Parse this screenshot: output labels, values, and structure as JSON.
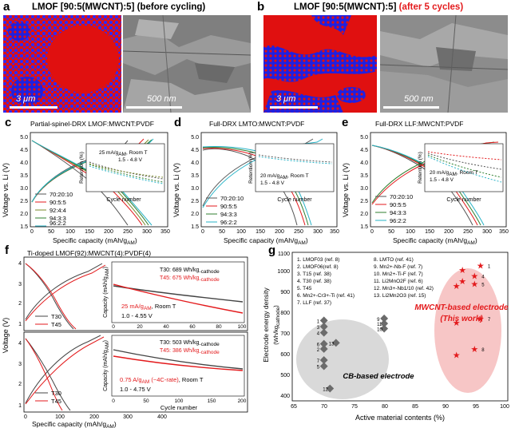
{
  "panels": {
    "a": {
      "letter": "a",
      "title": "LMOF [90:5(MWCNT):5]",
      "title_suffix": "(before cycling)",
      "scale_left": "3 μm",
      "scale_right": "500 nm"
    },
    "b": {
      "letter": "b",
      "title": "LMOF [90:5(MWCNT):5]",
      "title_suffix": "(after 5 cycles)",
      "scale_left": "3 μm",
      "scale_right": "500 nm"
    },
    "c": {
      "letter": "c",
      "title": "Partial-spinel-DRX LMOF:MWCNT:PVDF",
      "legend": [
        "70:20:10",
        "90:5:5",
        "92:4:4",
        "94:3:3",
        "96:2:2"
      ],
      "inset_note_1": "25 mA/g",
      "inset_note_1_sub": "AM",
      "inset_note_1_end": ", Room T",
      "inset_note_2": "1.5 - 4.8 V"
    },
    "d": {
      "letter": "d",
      "title": "Full-DRX LMTO:MWCNT:PVDF",
      "legend": [
        "70:20:10",
        "90:5:5",
        "94:3:3",
        "96:2:2"
      ],
      "inset_note_1": "20 mA/g",
      "inset_note_1_sub": "AM",
      "inset_note_1_end": ", Room T",
      "inset_note_2": "1.5 - 4.8 V"
    },
    "e": {
      "letter": "e",
      "title": "Full-DRX LLF:MWCNT:PVDF",
      "legend": [
        "70:20:10",
        "90:5:5",
        "94:3:3",
        "96:2:2"
      ],
      "inset_note_1": "20 mA/g",
      "inset_note_1_sub": "AM",
      "inset_note_1_end": ", Room T",
      "inset_note_2": "1.5 - 4.8 V"
    },
    "f": {
      "letter": "f",
      "title": "Ti-doped LMOF(92):MWCNT(4):PVDF(4)",
      "top": {
        "t30": "T30: 689 Wh/kg",
        "t30_sub": "-cathode",
        "t45": "T45: 675 Wh/kg",
        "t45_sub": "-cathode",
        "rate": "25 mA/g",
        "rate_sub": "AM",
        "rate_end": ", Room T",
        "window": "1.0 - 4.55 V"
      },
      "bottom": {
        "t30": "T30: 503 Wh/kg",
        "t30_sub": "-cathode",
        "t45": "T45: 386 Wh/kg",
        "t45_sub": "-cathode",
        "rate": "0.75 A/g",
        "rate_sub": "AM",
        "rate_end": " (~4C-rate)",
        "rate_tail": ", Room T",
        "window": "1.0 - 4.75 V"
      },
      "legend": [
        "T30",
        "T45"
      ]
    },
    "g": {
      "letter": "g",
      "ref_list_left": [
        "1. LMOF03 (ref. 8)",
        "2. LMOF06(ref. 8)",
        "3. T15 (ref. 38)",
        "4. T30 (ref. 38)",
        "5. T45",
        "6. Mn2+-Cr3+-Ti (ref. 41)",
        "7. LLF (ref. 37)"
      ],
      "ref_list_right": [
        "8. LMTO (ref. 41)",
        "9. Mn2+-Nb-F (ref. 7)",
        "10. Mn2+-Ti-F (ref. 7)",
        "11. Li2MnO2F (ref. 6)",
        "12. Mn3+-Nb1/10 (ref. 42)",
        "13. Li2Mn2O3 (ref. 15)"
      ],
      "mwcnt_label_1": "MWCNT-based electrode",
      "mwcnt_label_2": "(This work)",
      "cb_label": "CB-based electrode"
    }
  },
  "axes": {
    "c_x": "Specific capacity (mAh/g",
    "c_x_sub": "AM",
    "y_v": "Voltage vs. Li (V)",
    "ret": "Retention (%)",
    "cyc": "Cycle number",
    "f_y": "Voltage (V)",
    "f_cap": "Capacity (mAh/g",
    "f_cap_sub": "AM",
    "f_x": "Specific capacity (mAh/g",
    "f_x_sub": "AM",
    "g_x": "Active material contents (%)",
    "g_y": "Electrode energy density",
    "g_y2": "(Wh/kg",
    "g_y2_sub": "cathode"
  },
  "ticks": {
    "cde_y": [
      "1.5",
      "2.0",
      "2.5",
      "3.0",
      "3.5",
      "4.0",
      "4.5",
      "5.0"
    ],
    "cde_x": [
      "0",
      "50",
      "100",
      "150",
      "200",
      "250",
      "300",
      "350"
    ],
    "inset_y": [
      "70",
      "80",
      "90",
      "100"
    ],
    "inset_x": [
      "0",
      "5",
      "10",
      "15",
      "20",
      "25",
      "30"
    ],
    "f_y": [
      "1",
      "2",
      "3",
      "4"
    ],
    "f_y_labels": [
      "4",
      "3",
      "2",
      "1",
      "4",
      "3",
      "2",
      "1"
    ],
    "f_x": [
      "0",
      "100",
      "200",
      "300",
      "400"
    ],
    "f_cap_top": [
      "0",
      "50",
      "100",
      "150",
      "200",
      "250",
      "300"
    ],
    "f_cyc_top": [
      "0",
      "20",
      "40",
      "60",
      "80",
      "100"
    ],
    "f_cap_bot": [
      "0",
      "50",
      "100",
      "150",
      "200",
      "250"
    ],
    "f_cyc_bot": [
      "0",
      "50",
      "100",
      "150",
      "200"
    ],
    "g_x": [
      "65",
      "70",
      "75",
      "80",
      "85",
      "90",
      "95",
      "100"
    ],
    "g_y": [
      "400",
      "500",
      "600",
      "700",
      "800",
      "900",
      "1000",
      "1100"
    ]
  },
  "colors": {
    "c70": "#555555",
    "c90": "#e31a1c",
    "c92": "#7a8a2a",
    "c94": "#2f7f2f",
    "c96": "#27b3c7",
    "t45": "#e31a1c",
    "t30": "#444444"
  },
  "chart_data": [
    {
      "type": "scatter",
      "panel": "g",
      "xlabel": "Active material contents (%)",
      "ylabel": "Electrode energy density (Wh/kg cathode)",
      "xlim": [
        65,
        100
      ],
      "ylim": [
        400,
        1100
      ],
      "series": [
        {
          "name": "CB-based electrode",
          "points": [
            [
              70,
              780,
              "1"
            ],
            [
              70,
              750,
              "3"
            ],
            [
              70,
              720,
              "4"
            ],
            [
              70,
              665,
              "6"
            ],
            [
              70,
              640,
              "2"
            ],
            [
              70,
              585,
              "7"
            ],
            [
              70,
              555,
              "5"
            ],
            [
              72,
              670,
              "13"
            ],
            [
              80,
              790,
              "9"
            ],
            [
              80,
              765,
              "11"
            ],
            [
              80,
              740,
              "10"
            ],
            [
              71,
              445,
              "12"
            ]
          ]
        },
        {
          "name": "MWCNT-based electrode (This work)",
          "points": [
            [
              96,
              1050,
              "1"
            ],
            [
              93,
              1030,
              ""
            ],
            [
              95,
              1000,
              "4"
            ],
            [
              93,
              975,
              ""
            ],
            [
              95,
              960,
              "5"
            ],
            [
              92,
              950,
              ""
            ],
            [
              96,
              790,
              "7"
            ],
            [
              92,
              770,
              ""
            ],
            [
              95,
              640,
              "8"
            ],
            [
              92,
              610,
              ""
            ]
          ]
        }
      ]
    }
  ]
}
